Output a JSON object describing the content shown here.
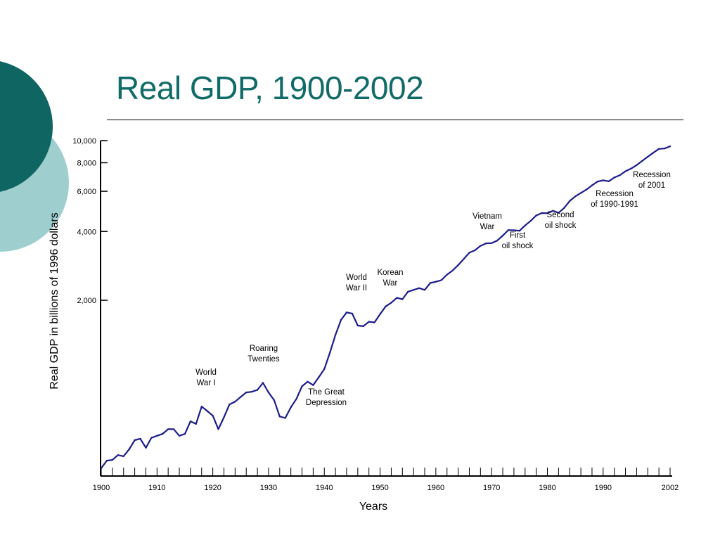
{
  "slide": {
    "title": "Real GDP, 1900-2002",
    "colors": {
      "title": "#116b68",
      "circle_dark": "#0e6562",
      "circle_light": "#9ecfce",
      "series_line": "#1c1c8c"
    }
  },
  "chart_data": {
    "type": "line",
    "title": "",
    "xlabel": "Years",
    "ylabel": "Real GDP in billions of 1996 dollars",
    "yscale": "log",
    "xlim": [
      1900,
      2002
    ],
    "ylim": [
      340,
      10000
    ],
    "x_ticks": [
      1900,
      1910,
      1920,
      1930,
      1940,
      1950,
      1960,
      1970,
      1980,
      1990,
      2002
    ],
    "x_tick_labels": [
      "1900",
      "1910",
      "1920",
      "1930",
      "1940",
      "1950",
      "1960",
      "1970",
      "1980",
      "1990",
      "2002"
    ],
    "y_ticks": [
      2000,
      4000,
      6000,
      8000,
      10000
    ],
    "y_tick_labels": [
      "2,000",
      "4,000",
      "6,000",
      "8,000",
      "10,000"
    ],
    "grid": false,
    "legend": "none",
    "series": [
      {
        "x": [
          1900,
          1901,
          1902,
          1903,
          1904,
          1905,
          1906,
          1907,
          1908,
          1909,
          1910,
          1911,
          1912,
          1913,
          1914,
          1915,
          1916,
          1917,
          1918,
          1919,
          1920,
          1921,
          1922,
          1923,
          1924,
          1925,
          1926,
          1927,
          1928,
          1929,
          1930,
          1931,
          1932,
          1933,
          1934,
          1935,
          1936,
          1937,
          1938,
          1939,
          1940,
          1941,
          1942,
          1943,
          1944,
          1945,
          1946,
          1947,
          1948,
          1949,
          1950,
          1951,
          1952,
          1953,
          1954,
          1955,
          1956,
          1957,
          1958,
          1959,
          1960,
          1961,
          1962,
          1963,
          1964,
          1965,
          1966,
          1967,
          1968,
          1969,
          1970,
          1971,
          1972,
          1973,
          1974,
          1975,
          1976,
          1977,
          1978,
          1979,
          1980,
          1981,
          1982,
          1983,
          1984,
          1985,
          1986,
          1987,
          1988,
          1989,
          1990,
          1991,
          1992,
          1993,
          1994,
          1995,
          1996,
          1997,
          1998,
          1999,
          2000,
          2001,
          2002
        ],
        "values": [
          368,
          397,
          400,
          420,
          415,
          445,
          488,
          495,
          452,
          500,
          510,
          520,
          545,
          545,
          510,
          520,
          590,
          575,
          685,
          655,
          625,
          545,
          615,
          700,
          720,
          755,
          790,
          795,
          810,
          870,
          790,
          730,
          620,
          610,
          680,
          740,
          840,
          880,
          850,
          920,
          1000,
          1180,
          1410,
          1640,
          1770,
          1750,
          1550,
          1540,
          1610,
          1600,
          1740,
          1880,
          1950,
          2050,
          2020,
          2180,
          2220,
          2260,
          2220,
          2380,
          2410,
          2450,
          2590,
          2700,
          2850,
          3030,
          3230,
          3310,
          3460,
          3550,
          3560,
          3650,
          3840,
          4060,
          4050,
          4030,
          4250,
          4450,
          4700,
          4820,
          4810,
          4930,
          4830,
          5070,
          5440,
          5700,
          5900,
          6100,
          6370,
          6620,
          6700,
          6640,
          6890,
          7060,
          7340,
          7540,
          7810,
          8150,
          8500,
          8850,
          9200,
          9240,
          9440
        ]
      }
    ],
    "annotations": [
      {
        "text": [
          "World",
          "War I"
        ],
        "year": 1918
      },
      {
        "text": [
          "Roaring",
          "Twenties"
        ],
        "year": 1929
      },
      {
        "text": [
          "The Great",
          "Depression"
        ],
        "year": 1935
      },
      {
        "text": [
          "World",
          "War II"
        ],
        "year": 1944
      },
      {
        "text": [
          "Korean",
          "War"
        ],
        "year": 1951
      },
      {
        "text": [
          "Vietnam",
          "War"
        ],
        "year": 1968
      },
      {
        "text": [
          "First",
          "oil shock"
        ],
        "year": 1974
      },
      {
        "text": [
          "Second",
          "oil shock"
        ],
        "year": 1979
      },
      {
        "text": [
          "Recession",
          "of 1990-1991"
        ],
        "year": 1991
      },
      {
        "text": [
          "Recession",
          "of 2001"
        ],
        "year": 2001
      }
    ]
  }
}
